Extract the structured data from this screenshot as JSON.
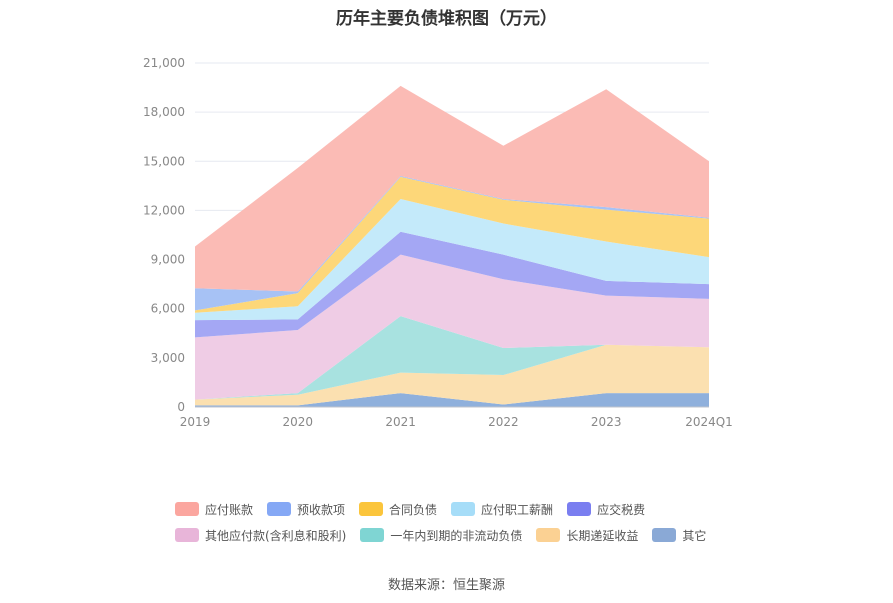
{
  "chart_data": {
    "type": "area",
    "title": "历年主要负债堆积图（万元）",
    "categories": [
      "2019",
      "2020",
      "2021",
      "2022",
      "2023",
      "2024Q1"
    ],
    "y_ticks": [
      "0",
      "3,000",
      "6,000",
      "9,000",
      "12,000",
      "15,000",
      "18,000",
      "21,000"
    ],
    "ylim": [
      0,
      21000
    ],
    "grid": true,
    "legend_position": "bottom",
    "series": [
      {
        "name": "其它",
        "color": "#8fb0dc",
        "values": [
          100,
          100,
          850,
          150,
          850,
          850
        ]
      },
      {
        "name": "长期递延收益",
        "color": "#fbe0b0",
        "values": [
          350,
          650,
          1250,
          1800,
          2950,
          2800
        ]
      },
      {
        "name": "一年内到期的非流动负债",
        "color": "#a8e2e0",
        "values": [
          0,
          100,
          3450,
          1650,
          0,
          0
        ]
      },
      {
        "name": "其他应付款(含利息和股利)",
        "color": "#efcce5",
        "values": [
          3800,
          3850,
          3750,
          4200,
          3000,
          2950
        ]
      },
      {
        "name": "应交税费",
        "color": "#a4a7f4",
        "values": [
          1050,
          650,
          1400,
          1500,
          900,
          900
        ]
      },
      {
        "name": "应付职工薪酬",
        "color": "#c4eafa",
        "values": [
          450,
          800,
          2000,
          1900,
          2400,
          1650
        ]
      },
      {
        "name": "合同负债",
        "color": "#fdd779",
        "values": [
          150,
          800,
          1350,
          1450,
          1950,
          2350
        ]
      },
      {
        "name": "预收款项",
        "color": "#a7c2f5",
        "values": [
          1350,
          100,
          50,
          50,
          150,
          50
        ]
      },
      {
        "name": "应付账款",
        "color": "#fbbbb5",
        "values": [
          2550,
          7550,
          5500,
          3250,
          7200,
          3450
        ]
      }
    ]
  },
  "legend": {
    "row1": [
      {
        "label": "应付账款",
        "color": "#fba69f"
      },
      {
        "label": "预收款项",
        "color": "#85a8f5"
      },
      {
        "label": "合同负债",
        "color": "#fbc53c"
      },
      {
        "label": "应付职工薪酬",
        "color": "#a6ddf8"
      },
      {
        "label": "应交税费",
        "color": "#7a7ef0"
      }
    ],
    "row2": [
      {
        "label": "其他应付款(含利息和股利)",
        "color": "#e8b5d9"
      },
      {
        "label": "一年内到期的非流动负债",
        "color": "#7fd5d3"
      },
      {
        "label": "长期递延收益",
        "color": "#fbd193"
      },
      {
        "label": "其它",
        "color": "#8aa9d6"
      }
    ]
  },
  "source": "数据来源：恒生聚源"
}
